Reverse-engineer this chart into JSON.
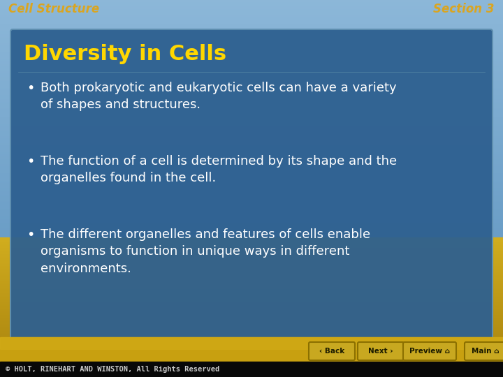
{
  "header_left": "Cell Structure",
  "header_right": "Section 3",
  "header_color": "#DAA520",
  "slide_title": "Diversity in Cells",
  "slide_title_color": "#FFD700",
  "slide_title_fontsize": 22,
  "bullet_color": "#FFFFFF",
  "bullet_fontsize": 13,
  "bullets": [
    "Both prokaryotic and eukaryotic cells can have a variety\nof shapes and structures.",
    "The function of a cell is determined by its shape and the\norganelles found in the cell.",
    "The different organelles and features of cells enable\norganisms to function in unique ways in different\nenvironments."
  ],
  "box_bg_color": "#2E6090",
  "box_border_color": "#6090B0",
  "footer_text": "© HOLT, RINEHART AND WINSTON, All Rights Reserved",
  "footer_color": "#CCCCCC",
  "footer_fontsize": 7.5,
  "nav_buttons": [
    "‹ Back",
    "Next ›",
    "Preview ⌂",
    "Main ⌂"
  ],
  "nav_button_bg": "#C8A820",
  "nav_button_border": "#8B7000",
  "nav_button_text": "#1A1A00",
  "header_fontsize": 12
}
